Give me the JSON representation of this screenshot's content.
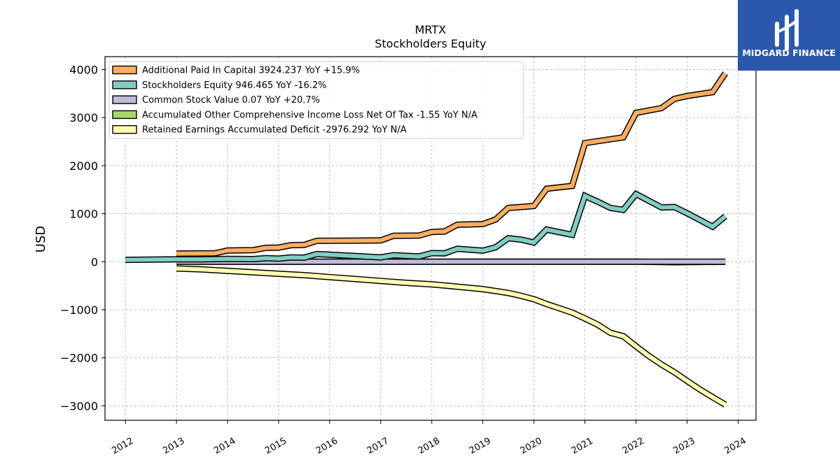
{
  "chart_data": {
    "type": "line",
    "title": "MRTX",
    "subtitle": "Stockholders  Equity",
    "xlabel": "",
    "ylabel": "USD",
    "x_ticks": [
      "2012",
      "2013",
      "2014",
      "2015",
      "2016",
      "2017",
      "2018",
      "2019",
      "2020",
      "2021",
      "2022",
      "2023",
      "2024"
    ],
    "y_ticks": [
      "4000",
      "3000",
      "2000",
      "1000",
      "0",
      "−1000",
      "−2000",
      "−3000"
    ],
    "xlim": [
      2011.6,
      2024.35
    ],
    "ylim": [
      -3300,
      4270
    ],
    "grid": true,
    "legend_position": "top-left",
    "series": [
      {
        "name": "Additional Paid In Capital  3924.237 YoY +15.9%",
        "color": "#fdae61",
        "points": [
          [
            2013.0,
            170
          ],
          [
            2013.75,
            175
          ],
          [
            2014.0,
            235
          ],
          [
            2014.5,
            240
          ],
          [
            2014.75,
            290
          ],
          [
            2015.0,
            295
          ],
          [
            2015.25,
            345
          ],
          [
            2015.5,
            350
          ],
          [
            2015.75,
            435
          ],
          [
            2016.5,
            440
          ],
          [
            2017.0,
            445
          ],
          [
            2017.25,
            540
          ],
          [
            2017.75,
            545
          ],
          [
            2018.0,
            620
          ],
          [
            2018.25,
            630
          ],
          [
            2018.5,
            770
          ],
          [
            2019.0,
            785
          ],
          [
            2019.25,
            880
          ],
          [
            2019.5,
            1120
          ],
          [
            2020.0,
            1160
          ],
          [
            2020.25,
            1520
          ],
          [
            2020.75,
            1580
          ],
          [
            2021.0,
            2470
          ],
          [
            2021.75,
            2590
          ],
          [
            2022.0,
            3100
          ],
          [
            2022.5,
            3200
          ],
          [
            2022.75,
            3390
          ],
          [
            2023.0,
            3450
          ],
          [
            2023.5,
            3530
          ],
          [
            2023.75,
            3924
          ]
        ]
      },
      {
        "name": "Stockholders Equity  946.465 YoY -16.2%",
        "color": "#80cdc1",
        "points": [
          [
            2012.0,
            40
          ],
          [
            2013.0,
            50
          ],
          [
            2013.5,
            50
          ],
          [
            2014.0,
            60
          ],
          [
            2014.5,
            55
          ],
          [
            2014.75,
            75
          ],
          [
            2015.0,
            65
          ],
          [
            2015.25,
            90
          ],
          [
            2015.5,
            85
          ],
          [
            2015.75,
            160
          ],
          [
            2016.5,
            120
          ],
          [
            2017.0,
            90
          ],
          [
            2017.25,
            135
          ],
          [
            2017.75,
            110
          ],
          [
            2018.0,
            180
          ],
          [
            2018.25,
            175
          ],
          [
            2018.5,
            270
          ],
          [
            2019.0,
            230
          ],
          [
            2019.25,
            300
          ],
          [
            2019.5,
            490
          ],
          [
            2019.75,
            460
          ],
          [
            2020.0,
            400
          ],
          [
            2020.25,
            670
          ],
          [
            2020.75,
            560
          ],
          [
            2021.0,
            1370
          ],
          [
            2021.25,
            1250
          ],
          [
            2021.5,
            1120
          ],
          [
            2021.75,
            1080
          ],
          [
            2022.0,
            1410
          ],
          [
            2022.5,
            1130
          ],
          [
            2022.75,
            1140
          ],
          [
            2023.0,
            1010
          ],
          [
            2023.5,
            730
          ],
          [
            2023.75,
            946
          ]
        ]
      },
      {
        "name": "Common Stock Value  0.07 YoY +20.7%",
        "color": "#bebada",
        "points": [
          [
            2013.0,
            0.03
          ],
          [
            2016.0,
            0.04
          ],
          [
            2019.0,
            0.05
          ],
          [
            2022.0,
            0.058
          ],
          [
            2023.75,
            0.07
          ]
        ]
      },
      {
        "name": "Accumulated Other Comprehensive Income Loss Net Of Tax  -1.55 YoY N/A",
        "color": "#a6d96a",
        "points": [
          [
            2013.0,
            0
          ],
          [
            2018.0,
            0
          ],
          [
            2022.0,
            0
          ],
          [
            2022.75,
            -10
          ],
          [
            2023.75,
            -1.55
          ]
        ]
      },
      {
        "name": "Retained Earnings Accumulated Deficit  -2976.292 YoY N/A",
        "color": "#ffffb3",
        "points": [
          [
            2013.0,
            -140
          ],
          [
            2013.5,
            -160
          ],
          [
            2014.0,
            -190
          ],
          [
            2014.5,
            -220
          ],
          [
            2015.0,
            -250
          ],
          [
            2015.5,
            -280
          ],
          [
            2016.0,
            -320
          ],
          [
            2016.5,
            -360
          ],
          [
            2017.0,
            -400
          ],
          [
            2017.5,
            -440
          ],
          [
            2018.0,
            -470
          ],
          [
            2018.5,
            -520
          ],
          [
            2019.0,
            -570
          ],
          [
            2019.25,
            -610
          ],
          [
            2019.5,
            -650
          ],
          [
            2019.75,
            -710
          ],
          [
            2020.0,
            -780
          ],
          [
            2020.25,
            -880
          ],
          [
            2020.5,
            -970
          ],
          [
            2020.75,
            -1060
          ],
          [
            2021.0,
            -1180
          ],
          [
            2021.25,
            -1310
          ],
          [
            2021.5,
            -1480
          ],
          [
            2021.75,
            -1550
          ],
          [
            2022.0,
            -1760
          ],
          [
            2022.25,
            -1960
          ],
          [
            2022.5,
            -2140
          ],
          [
            2022.75,
            -2300
          ],
          [
            2023.0,
            -2480
          ],
          [
            2023.25,
            -2660
          ],
          [
            2023.5,
            -2820
          ],
          [
            2023.75,
            -2976
          ]
        ]
      }
    ]
  },
  "logo": {
    "text": "MIDGARD FINANCE",
    "background": "#2b58ad"
  }
}
